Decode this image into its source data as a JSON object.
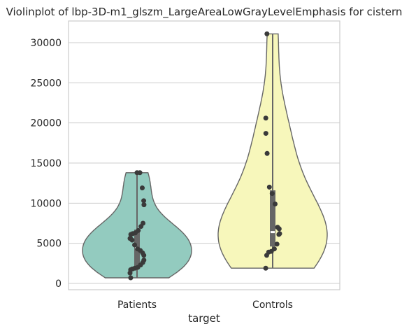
{
  "chart_data": {
    "type": "violin",
    "title": "Violinplot of lbp-3D-m1_glszm_LargeAreaLowGrayLevelEmphasis for cistern",
    "xlabel": "target",
    "ylabel": "",
    "categories": [
      "Patients",
      "Controls"
    ],
    "ylim": [
      -800,
      32500
    ],
    "yticks": [
      0,
      5000,
      10000,
      15000,
      20000,
      25000,
      30000
    ],
    "grid": true,
    "colors": {
      "Patients": "#93cbbf",
      "Controls": "#f7f7bb",
      "outline": "#666666",
      "box": "#666666",
      "median": "#ffffff",
      "points": "#3a3a3a",
      "grid": "#cccccc",
      "frame": "#cccccc"
    },
    "series": [
      {
        "category": "Patients",
        "min": 700,
        "max": 13800,
        "quartiles": [
          2000,
          4400,
          6700
        ],
        "points": [
          13800,
          13800,
          11900,
          10300,
          9800,
          7500,
          7100,
          6600,
          6300,
          6200,
          6100,
          5600,
          5600,
          5400,
          4800,
          4300,
          4100,
          3800,
          3500,
          2900,
          2600,
          2300,
          2000,
          1900,
          1800,
          1700,
          1300,
          700
        ]
      },
      {
        "category": "Controls",
        "min": 1900,
        "max": 31100,
        "quartiles": [
          4600,
          6400,
          11600
        ],
        "points": [
          31100,
          20600,
          18700,
          16200,
          12000,
          11200,
          9900,
          7000,
          6800,
          6200,
          6100,
          4900,
          4300,
          4000,
          3900,
          3500,
          1900
        ]
      }
    ]
  }
}
